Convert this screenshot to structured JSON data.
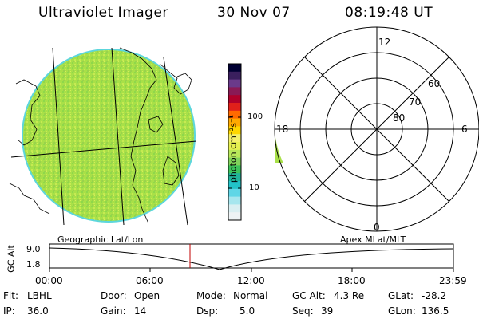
{
  "header": {
    "instrument": "Ultraviolet Imager",
    "date": "30 Nov 07",
    "time": "08:19:48 UT"
  },
  "colorbar": {
    "unit_label": "photon cm⁻²s⁻¹",
    "tick_100": "100",
    "tick_10": "10",
    "colors": [
      "#000033",
      "#3a1f5e",
      "#6a3a8a",
      "#8a1a55",
      "#b0002a",
      "#e0201a",
      "#ff6a00",
      "#ffaa00",
      "#ffd700",
      "#f4f06a",
      "#e6f050",
      "#b8e85a",
      "#7fd25a",
      "#3cc35a",
      "#20b49a",
      "#22c3c8",
      "#60d6e6",
      "#a6e6ee",
      "#d9eff2",
      "#eef3f5"
    ]
  },
  "polar": {
    "mlt_12": "12",
    "mlt_18": "18",
    "mlt_6": "6",
    "mlt_0": "0",
    "lat_60": "60",
    "lat_70": "70",
    "lat_80": "80"
  },
  "orbit": {
    "left_label": "Geographic Lat/Lon",
    "right_label": "Apex MLat/MLT",
    "axis_title": "GC Alt",
    "y_max": "9.0",
    "y_min": "1.8",
    "x_ticks": [
      "00:00",
      "06:00",
      "12:00",
      "18:00",
      "23:59"
    ],
    "marker_time": "08:19"
  },
  "status": {
    "flt_label": "Flt:",
    "flt_value": "LBHL",
    "ip_label": "IP:",
    "ip_value": "36.0",
    "door_label": "Door:",
    "door_value": "Open",
    "gain_label": "Gain:",
    "gain_value": "14",
    "mode_label": "Mode:",
    "mode_value": "Normal",
    "dsp_label": "Dsp:",
    "dsp_value": "5.0",
    "gcalt_label": "GC Alt:",
    "gcalt_value": "4.3 Re",
    "seq_label": "Seq:",
    "seq_value": "39",
    "glat_label": "GLat:",
    "glat_value": "-28.2",
    "glon_label": "GLon:",
    "glon_value": "136.5"
  }
}
